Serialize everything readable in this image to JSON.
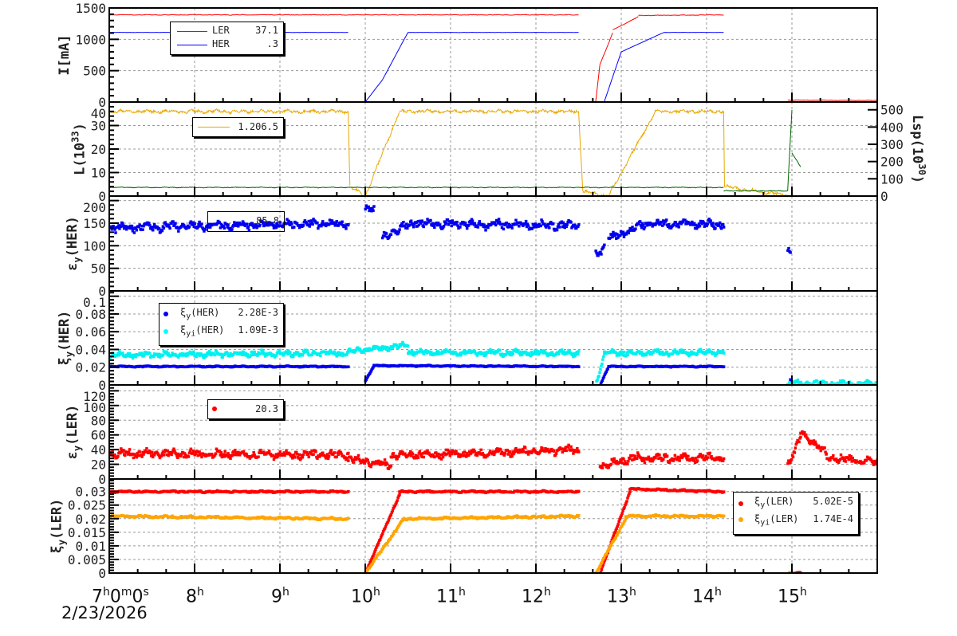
{
  "chart_data": [
    {
      "type": "line",
      "ylabel": "I[mA]",
      "ylabel_sub": "",
      "ylabel_rest": "",
      "ylim": [
        0,
        1500
      ],
      "yticks": [
        0,
        500,
        1000,
        1500
      ],
      "series": [
        {
          "name": "LER",
          "color": "#ff0000",
          "legend_value": "37.1",
          "segments": [
            [
              7.0,
              12.5,
              1390,
              1390
            ],
            [
              12.5,
              12.7,
              0,
              0
            ],
            [
              12.7,
              12.75,
              0,
              600
            ],
            [
              12.75,
              12.9,
              600,
              1100
            ],
            [
              12.9,
              13.2,
              1150,
              1360
            ],
            [
              13.2,
              14.2,
              1380,
              1390
            ],
            [
              14.2,
              14.95,
              0,
              0
            ],
            [
              14.95,
              16.0,
              30,
              25
            ]
          ],
          "noise": 6
        },
        {
          "name": "HER",
          "color": "#0000ff",
          "legend_value": ".3",
          "segments": [
            [
              7.0,
              9.8,
              1110,
              1110
            ],
            [
              9.8,
              10.0,
              0,
              0
            ],
            [
              10.0,
              10.2,
              0,
              350
            ],
            [
              10.2,
              10.5,
              350,
              1110
            ],
            [
              10.5,
              12.5,
              1110,
              1110
            ],
            [
              12.5,
              12.8,
              0,
              0
            ],
            [
              12.8,
              13.0,
              0,
              800
            ],
            [
              13.0,
              13.5,
              800,
              1110
            ],
            [
              13.5,
              14.2,
              1110,
              1110
            ],
            [
              14.2,
              16.0,
              0,
              0
            ]
          ],
          "noise": 2
        }
      ]
    },
    {
      "type": "line",
      "ylabel": "L(10",
      "ylabel_sub": "33",
      "ylabel_rest": ")",
      "ylabel_sup": true,
      "ylim": [
        0,
        40
      ],
      "yticks": [
        0,
        10,
        20,
        30,
        40
      ],
      "y2label": "Lsp(10",
      "y2label_sup": "30",
      "y2label_rest": ")",
      "y2lim": [
        0,
        545
      ],
      "y2ticks": [
        0,
        100,
        200,
        300,
        400,
        500
      ],
      "series": [
        {
          "name": "L",
          "color": "#e8a800",
          "legend_value": "1.206.5",
          "segments": [
            [
              7.0,
              9.8,
              36,
              36
            ],
            [
              9.8,
              9.82,
              36,
              4
            ],
            [
              9.82,
              10.0,
              4,
              0
            ],
            [
              10.0,
              10.4,
              0,
              36
            ],
            [
              10.4,
              12.5,
              36,
              36
            ],
            [
              12.5,
              12.55,
              36,
              2
            ],
            [
              12.55,
              12.85,
              2,
              0
            ],
            [
              12.85,
              13.4,
              0,
              36
            ],
            [
              13.4,
              14.2,
              36,
              36
            ],
            [
              14.2,
              14.21,
              36,
              4
            ],
            [
              14.21,
              15.0,
              4,
              0
            ]
          ],
          "noise": 1.0
        },
        {
          "name": "Lsp",
          "color": "#006600",
          "axis": "right",
          "segments": [
            [
              7.0,
              14.2,
              50,
              50
            ],
            [
              14.2,
              14.95,
              30,
              30
            ],
            [
              14.95,
              15.0,
              30,
              500
            ],
            [
              15.0,
              15.1,
              250,
              170
            ]
          ],
          "noise": 3
        }
      ]
    },
    {
      "type": "scatter",
      "ylabel": "ε",
      "ylabel_sub": "y",
      "ylabel_rest": "(HER)",
      "ylim": [
        0,
        210
      ],
      "yticks": [
        0,
        50,
        100,
        150,
        200
      ],
      "series": [
        {
          "name": "εy(HER)",
          "color": "#0000ee",
          "legend_value": "85.8",
          "segments": [
            [
              7.0,
              9.8,
              140,
              150
            ],
            [
              10.0,
              10.1,
              185,
              185
            ],
            [
              10.2,
              10.6,
              120,
              155
            ],
            [
              10.6,
              12.5,
              150,
              145
            ],
            [
              12.7,
              12.8,
              80,
              100
            ],
            [
              12.85,
              13.3,
              115,
              150
            ],
            [
              13.3,
              14.2,
              150,
              148
            ],
            [
              14.95,
              14.98,
              95,
              90
            ]
          ],
          "noise": 12
        }
      ]
    },
    {
      "type": "scatter",
      "ylabel": "ξ",
      "ylabel_sub": "y",
      "ylabel_rest": "(HER)",
      "ylim": [
        0,
        0.106
      ],
      "yticks": [
        0,
        0.02,
        0.04,
        0.06,
        0.08,
        0.1
      ],
      "series": [
        {
          "name": "ξy(HER)",
          "sub": "y",
          "color": "#0000ee",
          "legend_value": "2.28E-3",
          "segments": [
            [
              7.0,
              9.8,
              0.021,
              0.021
            ],
            [
              10.0,
              10.1,
              0.005,
              0.022
            ],
            [
              10.1,
              12.5,
              0.022,
              0.021
            ],
            [
              12.75,
              12.85,
              0.0,
              0.021
            ],
            [
              12.85,
              14.2,
              0.021,
              0.021
            ],
            [
              14.98,
              15.0,
              0.006,
              0.004
            ]
          ],
          "noise": 0.0008
        },
        {
          "name": "ξyi(HER)",
          "sub": "yi",
          "color": "#00f0f0",
          "legend_value": "1.09E-3",
          "segments": [
            [
              7.0,
              9.8,
              0.034,
              0.036
            ],
            [
              9.8,
              10.0,
              0.038,
              0.04
            ],
            [
              10.0,
              10.5,
              0.04,
              0.045
            ],
            [
              10.5,
              12.5,
              0.037,
              0.036
            ],
            [
              12.7,
              12.8,
              0.0,
              0.035
            ],
            [
              12.8,
              14.2,
              0.036,
              0.037
            ],
            [
              14.95,
              16.0,
              0.002,
              0.001
            ]
          ],
          "noise": 0.004
        }
      ]
    },
    {
      "type": "scatter",
      "ylabel": "ε",
      "ylabel_sub": "y",
      "ylabel_rest": "(LER)",
      "ylim": [
        0,
        128
      ],
      "yticks": [
        0,
        20,
        40,
        60,
        80,
        100,
        120
      ],
      "series": [
        {
          "name": "εy(LER)",
          "color": "#ff0000",
          "legend_value": "20.3",
          "segments": [
            [
              7.0,
              9.8,
              35,
              33
            ],
            [
              9.8,
              10.3,
              27,
              20
            ],
            [
              10.3,
              12.5,
              32,
              40
            ],
            [
              12.75,
              13.2,
              18,
              30
            ],
            [
              13.2,
              14.2,
              28,
              30
            ],
            [
              14.95,
              15.1,
              20,
              55
            ],
            [
              15.1,
              15.4,
              65,
              35
            ],
            [
              15.4,
              16.0,
              30,
              22
            ]
          ],
          "noise": 7
        }
      ]
    },
    {
      "type": "scatter",
      "ylabel": "ξ",
      "ylabel_sub": "y",
      "ylabel_rest": "(LER)",
      "ylim": [
        0,
        0.0346
      ],
      "yticks": [
        0,
        0.005,
        0.01,
        0.015,
        0.02,
        0.025,
        0.03
      ],
      "ytick_labels": [
        "0",
        "0.005",
        "0.01",
        "0.015",
        "0.02",
        "0.025",
        "0.03"
      ],
      "series": [
        {
          "name": "ξy(LER)",
          "sub": "y",
          "color": "#ff0000",
          "legend_value": "5.02E-5",
          "segments": [
            [
              7.0,
              9.8,
              0.03,
              0.03
            ],
            [
              10.0,
              10.4,
              0.0,
              0.029
            ],
            [
              10.4,
              12.5,
              0.03,
              0.03
            ],
            [
              12.75,
              13.1,
              0.0,
              0.03
            ],
            [
              13.1,
              14.2,
              0.031,
              0.03
            ],
            [
              14.97,
              15.1,
              0.0,
              0.0
            ]
          ],
          "noise": 0.0004
        },
        {
          "name": "ξyi(LER)",
          "sub": "yi",
          "color": "#ffa500",
          "legend_value": "1.74E-4",
          "segments": [
            [
              7.0,
              9.8,
              0.021,
              0.02
            ],
            [
              10.0,
              10.45,
              0.0,
              0.02
            ],
            [
              10.45,
              12.5,
              0.02,
              0.021
            ],
            [
              12.7,
              13.05,
              0.0,
              0.02
            ],
            [
              13.05,
              14.2,
              0.021,
              0.021
            ],
            [
              14.97,
              15.0,
              0.0,
              0.0
            ]
          ],
          "noise": 0.0005
        }
      ]
    }
  ],
  "xaxis": {
    "range_hours": [
      7,
      16
    ],
    "tick_labels": [
      {
        "h": 7,
        "text": "7",
        "sup": "h",
        "text2": "0",
        "sup2": "m",
        "text3": "0",
        "sup3": "s"
      },
      {
        "h": 8,
        "text": "8",
        "sup": "h"
      },
      {
        "h": 9,
        "text": "9",
        "sup": "h"
      },
      {
        "h": 10,
        "text": "10",
        "sup": "h"
      },
      {
        "h": 11,
        "text": "11",
        "sup": "h"
      },
      {
        "h": 12,
        "text": "12",
        "sup": "h"
      },
      {
        "h": 13,
        "text": "13",
        "sup": "h"
      },
      {
        "h": 14,
        "text": "14",
        "sup": "h"
      },
      {
        "h": 15,
        "text": "15",
        "sup": "h"
      }
    ],
    "date": "2/23/2026"
  },
  "legends": {
    "current": [
      {
        "label": "LER",
        "value": "37.1"
      },
      {
        "label": "HER",
        "value": ".3"
      }
    ],
    "lumi": {
      "value": "1.206.5"
    },
    "emit_her": {
      "value": "85.8"
    },
    "xi_her": [
      {
        "label": "ξ",
        "sub": "y",
        "rest": "(HER)",
        "value": "2.28E-3"
      },
      {
        "label": "ξ",
        "sub": "yi",
        "rest": "(HER)",
        "value": "1.09E-3"
      }
    ],
    "emit_ler": {
      "value": "20.3"
    },
    "xi_ler": [
      {
        "label": "ξ",
        "sub": "y",
        "rest": "(LER)",
        "value": "5.02E-5"
      },
      {
        "label": "ξ",
        "sub": "yi",
        "rest": "(LER)",
        "value": "1.74E-4"
      }
    ]
  }
}
